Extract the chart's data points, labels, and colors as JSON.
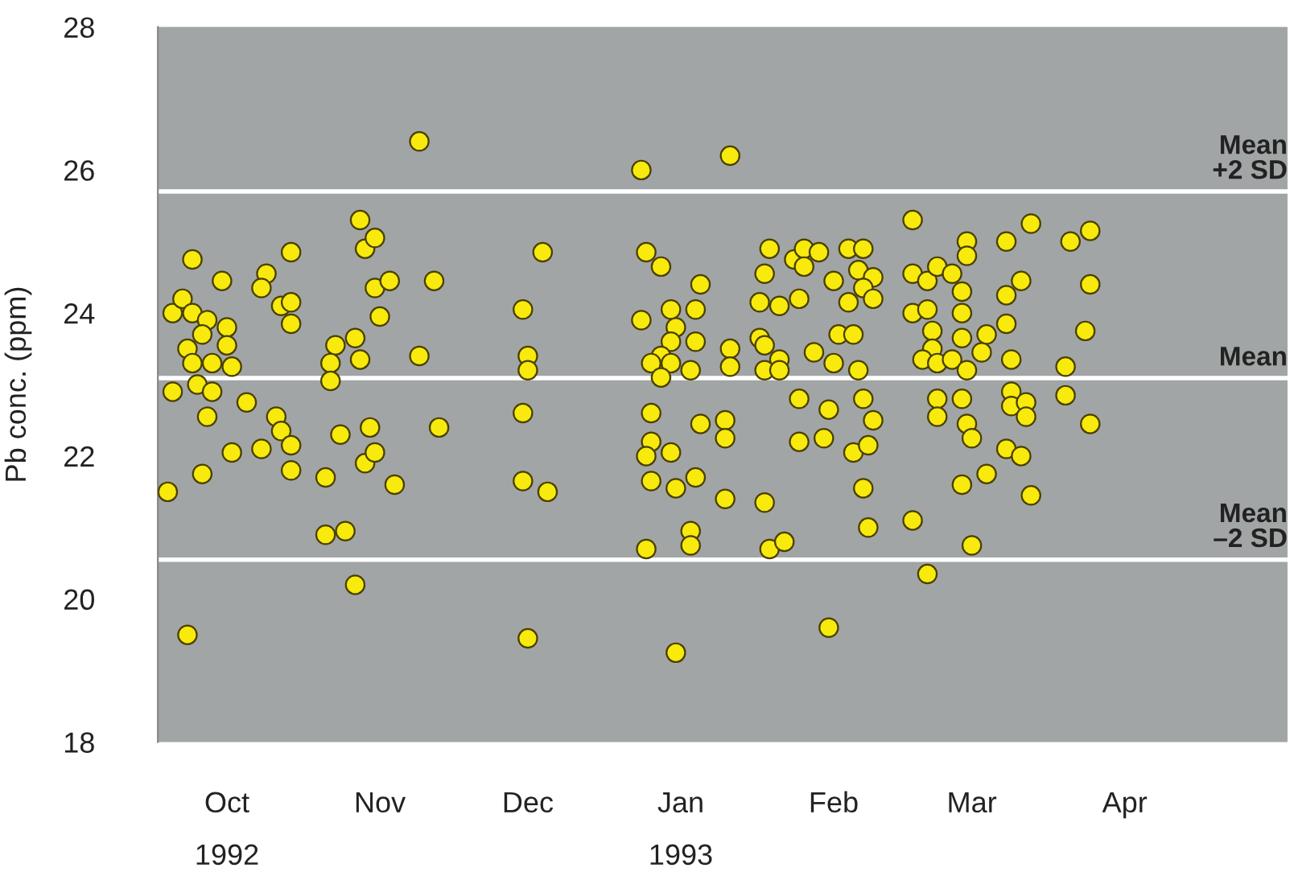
{
  "chart_data": {
    "type": "scatter",
    "ylabel": "Pb conc. (ppm)",
    "xlim": [
      "1992-10-01",
      "1993-05-18"
    ],
    "ylim": [
      18,
      28
    ],
    "yticks": [
      18,
      20,
      22,
      24,
      26,
      28
    ],
    "xticks": [
      {
        "value": "1992-10-15",
        "label": "Oct\n1992"
      },
      {
        "value": "1992-11-15",
        "label": "Nov"
      },
      {
        "value": "1992-12-15",
        "label": "Dec"
      },
      {
        "value": "1993-01-15",
        "label": "Jan\n1993"
      },
      {
        "value": "1993-02-15",
        "label": "Feb"
      },
      {
        "value": "1993-03-15",
        "label": "Mar"
      },
      {
        "value": "1993-04-15",
        "label": "Apr"
      }
    ],
    "grid": false,
    "marker": "circle",
    "ref_lines": [
      {
        "axis": "y",
        "value": 25.7,
        "label": "Mean\n+2 SD",
        "color": "#ffffff"
      },
      {
        "axis": "y",
        "value": 23.09,
        "label": "Mean",
        "color": "#ffffff"
      },
      {
        "axis": "y",
        "value": 20.55,
        "label": "Mean\n–2 SD",
        "color": "#ffffff"
      }
    ],
    "series": [
      {
        "color": "#f7ea0c",
        "x": [
          "1992-10-04",
          "1992-10-04",
          "1992-10-03",
          "1992-10-06",
          "1992-10-08",
          "1992-10-08",
          "1992-10-07",
          "1992-10-08",
          "1992-10-09",
          "1992-10-07",
          "1992-10-11",
          "1992-10-10",
          "1992-10-12",
          "1992-10-11",
          "1992-10-12",
          "1992-10-10",
          "1992-10-14",
          "1992-10-15",
          "1992-10-15",
          "1992-10-16",
          "1992-10-16",
          "1992-10-19",
          "1992-10-22",
          "1992-10-23",
          "1992-10-22",
          "1992-10-25",
          "1992-10-26",
          "1992-10-26",
          "1992-10-28",
          "1992-10-28",
          "1992-10-28",
          "1992-10-28",
          "1992-10-28",
          "1992-11-04",
          "1992-11-04",
          "1992-11-06",
          "1992-11-05",
          "1992-11-05",
          "1992-11-07",
          "1992-11-08",
          "1992-11-10",
          "1992-11-11",
          "1992-11-10",
          "1992-11-11",
          "1992-11-12",
          "1992-11-14",
          "1992-11-14",
          "1992-11-17",
          "1992-11-15",
          "1992-11-13",
          "1992-11-12",
          "1992-11-14",
          "1992-11-18",
          "1992-11-23",
          "1992-11-23",
          "1992-11-26",
          "1992-11-27",
          "1992-12-14",
          "1992-12-15",
          "1992-12-15",
          "1992-12-14",
          "1992-12-14",
          "1992-12-19",
          "1992-12-18",
          "1992-12-15",
          "1993-01-07",
          "1993-01-25",
          "1993-01-08",
          "1993-01-11",
          "1993-01-07",
          "1993-01-13",
          "1993-01-18",
          "1993-01-19",
          "1993-01-14",
          "1993-01-13",
          "1993-01-11",
          "1993-01-09",
          "1993-01-13",
          "1993-01-11",
          "1993-01-18",
          "1993-01-17",
          "1993-01-09",
          "1993-01-09",
          "1993-01-08",
          "1993-01-13",
          "1993-01-09",
          "1993-01-14",
          "1993-01-18",
          "1993-01-08",
          "1993-01-17",
          "1993-01-17",
          "1993-01-14",
          "1993-01-19",
          "1993-01-25",
          "1993-01-25",
          "1993-01-24",
          "1993-01-24",
          "1993-01-24",
          "1993-01-31",
          "1993-02-04",
          "1993-02-01",
          "1993-02-02",
          "1993-01-31",
          "1993-02-01",
          "1993-02-04",
          "1993-02-01",
          "1993-02-04",
          "1993-02-01",
          "1993-02-02",
          "1993-02-05",
          "1993-02-07",
          "1993-02-09",
          "1993-02-09",
          "1993-02-12",
          "1993-02-08",
          "1993-02-11",
          "1993-02-15",
          "1993-02-15",
          "1993-02-16",
          "1993-02-08",
          "1993-02-08",
          "1993-02-14",
          "1993-02-13",
          "1993-02-14",
          "1993-02-18",
          "1993-02-21",
          "1993-02-20",
          "1993-02-23",
          "1993-02-21",
          "1993-02-23",
          "1993-02-18",
          "1993-02-19",
          "1993-02-20",
          "1993-02-21",
          "1993-02-23",
          "1993-02-19",
          "1993-02-22",
          "1993-02-21",
          "1993-02-22",
          "1993-03-03",
          "1993-03-03",
          "1993-03-06",
          "1993-03-08",
          "1993-03-11",
          "1993-03-03",
          "1993-03-06",
          "1993-03-07",
          "1993-03-07",
          "1993-03-05",
          "1993-03-08",
          "1993-03-11",
          "1993-03-08",
          "1993-03-08",
          "1993-03-03",
          "1993-03-06",
          "1993-03-14",
          "1993-03-14",
          "1993-03-13",
          "1993-03-13",
          "1993-03-13",
          "1993-03-14",
          "1993-03-18",
          "1993-03-17",
          "1993-03-13",
          "1993-03-14",
          "1993-03-15",
          "1993-03-13",
          "1993-03-18",
          "1993-03-15",
          "1993-03-22",
          "1993-03-27",
          "1993-03-25",
          "1993-03-22",
          "1993-03-22",
          "1993-03-23",
          "1993-03-23",
          "1993-03-23",
          "1993-03-26",
          "1993-03-26",
          "1993-03-22",
          "1993-03-25",
          "1993-03-27",
          "1993-04-04",
          "1993-04-08",
          "1993-04-08",
          "1993-04-07",
          "1993-04-03",
          "1993-04-03",
          "1993-04-08"
        ],
        "values": [
          24.0,
          22.9,
          21.5,
          24.2,
          24.75,
          24.0,
          23.5,
          23.3,
          23.0,
          19.5,
          23.9,
          23.7,
          22.9,
          22.55,
          23.3,
          21.75,
          24.45,
          23.8,
          23.55,
          23.25,
          22.05,
          22.75,
          22.1,
          24.55,
          24.35,
          22.55,
          22.35,
          24.1,
          24.15,
          24.85,
          23.85,
          22.15,
          21.8,
          21.7,
          20.9,
          23.55,
          23.3,
          23.05,
          22.3,
          20.95,
          20.2,
          25.3,
          23.65,
          23.35,
          24.9,
          25.05,
          24.35,
          24.45,
          23.95,
          22.4,
          21.9,
          22.05,
          21.6,
          26.4,
          23.4,
          24.45,
          22.4,
          24.05,
          23.4,
          23.2,
          22.6,
          21.65,
          21.5,
          24.85,
          19.45,
          26.0,
          26.2,
          24.85,
          24.65,
          23.9,
          24.05,
          24.05,
          24.4,
          23.8,
          23.6,
          23.4,
          23.3,
          23.3,
          23.1,
          23.6,
          23.2,
          22.6,
          22.2,
          22.0,
          22.05,
          21.65,
          21.55,
          21.7,
          20.7,
          20.95,
          20.75,
          19.25,
          22.45,
          23.5,
          23.25,
          22.5,
          22.25,
          21.4,
          24.15,
          24.1,
          24.55,
          24.9,
          23.65,
          23.55,
          23.35,
          23.2,
          23.2,
          21.35,
          20.7,
          20.8,
          24.75,
          24.9,
          24.65,
          24.85,
          24.2,
          23.45,
          23.3,
          24.45,
          23.7,
          22.8,
          22.2,
          22.65,
          22.25,
          19.6,
          24.9,
          24.9,
          24.6,
          24.5,
          24.35,
          24.2,
          24.15,
          23.7,
          23.2,
          22.8,
          22.5,
          22.05,
          22.15,
          21.55,
          21.0,
          25.3,
          24.55,
          24.45,
          24.65,
          24.55,
          24.0,
          24.05,
          23.75,
          23.5,
          23.35,
          23.3,
          23.35,
          22.8,
          22.55,
          21.1,
          20.35,
          25.0,
          24.8,
          24.3,
          24.0,
          23.65,
          23.2,
          23.7,
          23.45,
          22.8,
          22.45,
          22.25,
          21.6,
          21.75,
          20.75,
          25.0,
          25.25,
          24.45,
          24.25,
          23.85,
          23.35,
          22.9,
          22.7,
          22.75,
          22.55,
          22.1,
          22.0,
          21.45,
          25.0,
          25.15,
          24.4,
          23.75,
          23.25,
          22.85,
          22.45
        ]
      }
    ]
  }
}
